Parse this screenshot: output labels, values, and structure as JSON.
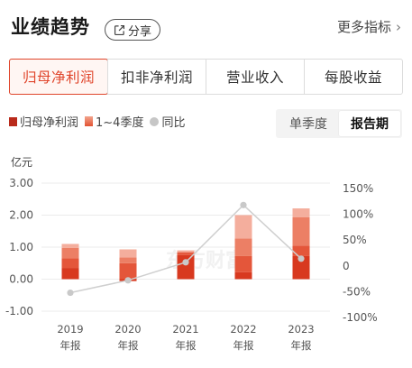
{
  "header": {
    "title": "业绩趋势",
    "share_label": "分享",
    "more_label": "更多指标",
    "more_chevron": "›"
  },
  "tabs": [
    {
      "label": "归母净利润",
      "active": true
    },
    {
      "label": "扣非净利润",
      "active": false
    },
    {
      "label": "营业收入",
      "active": false
    },
    {
      "label": "每股收益",
      "active": false
    }
  ],
  "legend": {
    "annual": "归母净利润",
    "quarters": "1~4季度",
    "yoy": "同比"
  },
  "period_toggle": {
    "options": [
      "单季度",
      "报告期"
    ],
    "selected": "报告期"
  },
  "watermark": "东方财富",
  "colors": {
    "accent": "#e0452b",
    "dark_red": "#b92a1b",
    "line_gray": "#c6c6c6"
  },
  "chart_data": {
    "type": "bar",
    "unit_label": "亿元",
    "categories": [
      [
        "2019",
        "年报"
      ],
      [
        "2020",
        "年报"
      ],
      [
        "2021",
        "年报"
      ],
      [
        "2022",
        "年报"
      ],
      [
        "2023",
        "年报"
      ]
    ],
    "left_axis": {
      "ticks": [
        "3.00",
        "2.00",
        "1.00",
        "0.00",
        "-1.00"
      ],
      "range": [
        -1,
        3
      ]
    },
    "right_axis": {
      "ticks": [
        "150%",
        "100%",
        "50%",
        "0",
        "-50%",
        "-100%"
      ],
      "range": [
        -100,
        150
      ]
    },
    "quarter_segments": [
      [
        0.35,
        0.3,
        0.33,
        0.12
      ],
      [
        -0.06,
        0.5,
        0.18,
        0.25
      ],
      [
        0.75,
        0.08,
        0.02,
        0.05
      ],
      [
        0.22,
        0.5,
        0.55,
        0.73
      ],
      [
        0.72,
        0.33,
        0.88,
        0.28
      ]
    ],
    "yoy": [
      -52,
      -28,
      7,
      118,
      14
    ]
  }
}
